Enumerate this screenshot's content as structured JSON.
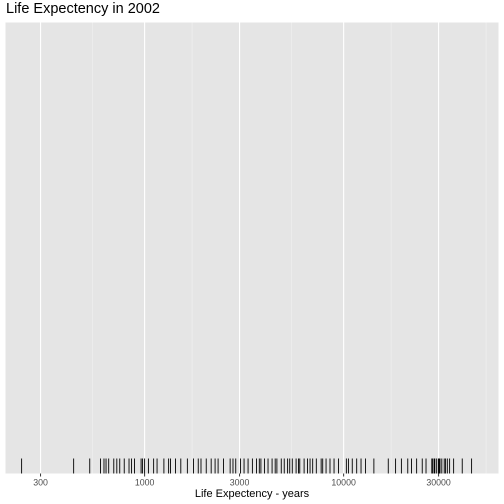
{
  "chart_data": {
    "type": "rug",
    "title": "Life Expectency in 2002",
    "xlabel": "Life Expectency - years",
    "ylabel": "",
    "x_scale": "log10",
    "xlim": [
      200,
      60000
    ],
    "x_ticks": [
      300,
      1000,
      3000,
      10000,
      30000
    ],
    "x_tick_labels": [
      "300",
      "1000",
      "3000",
      "10000",
      "30000"
    ],
    "grid": true,
    "legend": "none",
    "values": [
      241,
      440,
      530,
      600,
      625,
      640,
      660,
      700,
      725,
      750,
      790,
      835,
      860,
      890,
      960,
      975,
      1000,
      1045,
      1110,
      1155,
      1250,
      1320,
      1350,
      1430,
      1520,
      1640,
      1760,
      1860,
      1920,
      2040,
      2160,
      2260,
      2340,
      2490,
      2690,
      2780,
      2870,
      3030,
      3160,
      3310,
      3480,
      3650,
      3770,
      3840,
      4000,
      4170,
      4370,
      4530,
      4620,
      4860,
      5030,
      5230,
      5360,
      5520,
      5770,
      5930,
      6020,
      6330,
      6580,
      6780,
      6990,
      7290,
      7710,
      7850,
      8160,
      8540,
      8950,
      9420,
      10320,
      10570,
      11050,
      11630,
      12230,
      12870,
      14190,
      16760,
      18240,
      19510,
      21000,
      21940,
      23270,
      24830,
      25940,
      27740,
      28030,
      28510,
      28720,
      29340,
      29940,
      30180,
      30490,
      31140,
      32020,
      32530,
      33190,
      34080,
      35700,
      39440,
      43950
    ],
    "colors": {
      "panel_background": "#e5e5e5",
      "grid_major": "#ffffff",
      "grid_minor": "#f2f2f2",
      "rug": "#000000",
      "tick_label": "#4d4d4d"
    }
  }
}
